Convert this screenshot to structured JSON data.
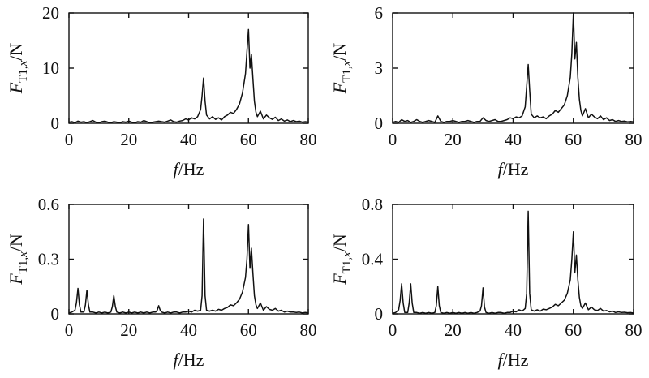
{
  "chart_data": [
    {
      "type": "line",
      "panel": "top-left",
      "xlabel": "f/Hz",
      "ylabel": "F_T1,x/N",
      "xlim": [
        0,
        80
      ],
      "ylim": [
        0,
        20
      ],
      "xticks": [
        0,
        20,
        40,
        60,
        80
      ],
      "yticks": [
        0,
        10,
        20
      ],
      "grid": false,
      "legend": "none",
      "series": [
        {
          "x": [
            0,
            1,
            2,
            3,
            4,
            5,
            6,
            7,
            8,
            9,
            10,
            11,
            12,
            13,
            14,
            15,
            16,
            17,
            18,
            19,
            20,
            21,
            22,
            23,
            24,
            25,
            26,
            27,
            28,
            29,
            30,
            31,
            32,
            33,
            34,
            35,
            36,
            37,
            38,
            39,
            40,
            41,
            42,
            43,
            44,
            44.5,
            45,
            45.5,
            46,
            47,
            48,
            49,
            50,
            51,
            52,
            53,
            54,
            55,
            56,
            57,
            58,
            59,
            59.5,
            60,
            60.5,
            61,
            61.5,
            62,
            62.5,
            63,
            64,
            65,
            66,
            67,
            68,
            69,
            70,
            71,
            72,
            73,
            74,
            75,
            76,
            77,
            78,
            79,
            80
          ],
          "y": [
            0.2,
            0.3,
            0.1,
            0.4,
            0.2,
            0.3,
            0.1,
            0.3,
            0.5,
            0.2,
            0.1,
            0.3,
            0.4,
            0.2,
            0.1,
            0.3,
            0.2,
            0.1,
            0.3,
            0.2,
            0.4,
            0.2,
            0.1,
            0.3,
            0.2,
            0.5,
            0.3,
            0.1,
            0.2,
            0.3,
            0.4,
            0.3,
            0.2,
            0.4,
            0.6,
            0.3,
            0.2,
            0.4,
            0.5,
            0.8,
            0.6,
            1.0,
            0.8,
            1.2,
            2.5,
            5.0,
            8.2,
            4.0,
            1.5,
            0.8,
            1.2,
            0.7,
            1.0,
            0.6,
            1.2,
            1.5,
            2.0,
            1.8,
            2.5,
            3.5,
            5.5,
            9.0,
            13.0,
            17.0,
            10.0,
            12.5,
            8.0,
            4.0,
            2.0,
            1.2,
            2.2,
            0.8,
            1.5,
            1.0,
            0.7,
            1.1,
            0.5,
            0.8,
            0.4,
            0.6,
            0.3,
            0.5,
            0.3,
            0.4,
            0.2,
            0.3,
            0.2
          ]
        }
      ]
    },
    {
      "type": "line",
      "panel": "top-right",
      "xlabel": "f/Hz",
      "ylabel": "F_T1,x/N",
      "xlim": [
        0,
        80
      ],
      "ylim": [
        0,
        6
      ],
      "xticks": [
        0,
        20,
        40,
        60,
        80
      ],
      "yticks": [
        0,
        3,
        6
      ],
      "grid": false,
      "legend": "none",
      "series": [
        {
          "x": [
            0,
            1,
            2,
            3,
            4,
            5,
            6,
            7,
            8,
            9,
            10,
            11,
            12,
            13,
            14,
            15,
            16,
            17,
            18,
            19,
            20,
            21,
            22,
            23,
            24,
            25,
            26,
            27,
            28,
            29,
            30,
            31,
            32,
            33,
            34,
            35,
            36,
            37,
            38,
            39,
            40,
            41,
            42,
            43,
            44,
            44.5,
            45,
            45.5,
            46,
            47,
            48,
            49,
            50,
            51,
            52,
            53,
            54,
            55,
            56,
            57,
            58,
            59,
            59.5,
            60,
            60.5,
            61,
            61.5,
            62,
            62.5,
            63,
            64,
            65,
            66,
            67,
            68,
            69,
            70,
            71,
            72,
            73,
            74,
            75,
            76,
            77,
            78,
            79,
            80
          ],
          "y": [
            0.05,
            0.1,
            0.05,
            0.2,
            0.1,
            0.15,
            0.05,
            0.1,
            0.2,
            0.1,
            0.05,
            0.1,
            0.15,
            0.1,
            0.05,
            0.4,
            0.1,
            0.05,
            0.1,
            0.1,
            0.15,
            0.1,
            0.05,
            0.1,
            0.1,
            0.15,
            0.1,
            0.05,
            0.1,
            0.1,
            0.3,
            0.15,
            0.1,
            0.15,
            0.2,
            0.1,
            0.1,
            0.15,
            0.2,
            0.3,
            0.25,
            0.35,
            0.3,
            0.4,
            0.9,
            2.0,
            3.2,
            1.8,
            0.5,
            0.3,
            0.4,
            0.3,
            0.35,
            0.25,
            0.4,
            0.5,
            0.7,
            0.6,
            0.8,
            1.0,
            1.5,
            2.5,
            3.8,
            6.0,
            3.5,
            4.4,
            2.5,
            1.3,
            0.7,
            0.4,
            0.8,
            0.3,
            0.5,
            0.35,
            0.25,
            0.4,
            0.2,
            0.3,
            0.15,
            0.2,
            0.1,
            0.15,
            0.1,
            0.12,
            0.08,
            0.1,
            0.08
          ]
        }
      ]
    },
    {
      "type": "line",
      "panel": "bottom-left",
      "xlabel": "f/Hz",
      "ylabel": "F_T1,x/N",
      "xlim": [
        0,
        80
      ],
      "ylim": [
        0,
        0.6
      ],
      "xticks": [
        0,
        20,
        40,
        60,
        80
      ],
      "yticks": [
        0,
        0.3,
        0.6
      ],
      "grid": false,
      "legend": "none",
      "series": [
        {
          "x": [
            0,
            1,
            2,
            2.5,
            3,
            3.5,
            4,
            5,
            5.5,
            6,
            6.5,
            7,
            8,
            9,
            10,
            11,
            12,
            13,
            14,
            14.5,
            15,
            15.5,
            16,
            17,
            18,
            19,
            20,
            21,
            22,
            23,
            24,
            25,
            26,
            27,
            28,
            29,
            29.5,
            30,
            30.5,
            31,
            32,
            33,
            34,
            35,
            36,
            37,
            38,
            39,
            40,
            41,
            42,
            43,
            44,
            44.5,
            45,
            45.5,
            46,
            47,
            48,
            49,
            50,
            51,
            52,
            53,
            54,
            55,
            56,
            57,
            58,
            59,
            59.5,
            60,
            60.5,
            61,
            61.5,
            62,
            62.5,
            63,
            64,
            65,
            66,
            67,
            68,
            69,
            70,
            71,
            72,
            73,
            74,
            75,
            76,
            77,
            78,
            79,
            80
          ],
          "y": [
            0.005,
            0.01,
            0.02,
            0.06,
            0.14,
            0.05,
            0.01,
            0.01,
            0.05,
            0.13,
            0.05,
            0.01,
            0.01,
            0.005,
            0.01,
            0.005,
            0.01,
            0.005,
            0.01,
            0.04,
            0.1,
            0.04,
            0.01,
            0.005,
            0.01,
            0.005,
            0.01,
            0.005,
            0.01,
            0.005,
            0.01,
            0.005,
            0.01,
            0.005,
            0.01,
            0.01,
            0.02,
            0.045,
            0.02,
            0.01,
            0.005,
            0.01,
            0.005,
            0.01,
            0.01,
            0.005,
            0.01,
            0.01,
            0.015,
            0.01,
            0.02,
            0.015,
            0.02,
            0.1,
            0.52,
            0.1,
            0.02,
            0.015,
            0.02,
            0.015,
            0.025,
            0.02,
            0.03,
            0.035,
            0.05,
            0.045,
            0.06,
            0.08,
            0.12,
            0.2,
            0.3,
            0.49,
            0.25,
            0.36,
            0.22,
            0.1,
            0.05,
            0.03,
            0.06,
            0.02,
            0.04,
            0.025,
            0.02,
            0.03,
            0.015,
            0.02,
            0.01,
            0.015,
            0.01,
            0.01,
            0.008,
            0.01,
            0.005,
            0.008,
            0.005
          ]
        }
      ]
    },
    {
      "type": "line",
      "panel": "bottom-right",
      "xlabel": "f/Hz",
      "ylabel": "F_T1,x/N",
      "xlim": [
        0,
        80
      ],
      "ylim": [
        0,
        0.8
      ],
      "xticks": [
        0,
        20,
        40,
        60,
        80
      ],
      "yticks": [
        0,
        0.4,
        0.8
      ],
      "grid": false,
      "legend": "none",
      "series": [
        {
          "x": [
            0,
            1,
            2,
            2.5,
            3,
            3.5,
            4,
            5,
            5.5,
            6,
            6.5,
            7,
            8,
            9,
            10,
            11,
            12,
            13,
            14,
            14.5,
            15,
            15.5,
            16,
            17,
            18,
            19,
            20,
            21,
            22,
            23,
            24,
            25,
            26,
            27,
            28,
            29,
            29.5,
            30,
            30.5,
            31,
            32,
            33,
            34,
            35,
            36,
            37,
            38,
            39,
            40,
            41,
            42,
            43,
            44,
            44.5,
            45,
            45.5,
            46,
            47,
            48,
            49,
            50,
            51,
            52,
            53,
            54,
            55,
            56,
            57,
            58,
            59,
            59.5,
            60,
            60.5,
            61,
            61.5,
            62,
            62.5,
            63,
            64,
            65,
            66,
            67,
            68,
            69,
            70,
            71,
            72,
            73,
            74,
            75,
            76,
            77,
            78,
            79,
            80
          ],
          "y": [
            0.005,
            0.01,
            0.03,
            0.1,
            0.22,
            0.08,
            0.01,
            0.01,
            0.08,
            0.22,
            0.08,
            0.01,
            0.01,
            0.005,
            0.01,
            0.005,
            0.01,
            0.005,
            0.01,
            0.06,
            0.2,
            0.06,
            0.01,
            0.005,
            0.01,
            0.005,
            0.01,
            0.005,
            0.01,
            0.005,
            0.01,
            0.005,
            0.01,
            0.005,
            0.01,
            0.02,
            0.06,
            0.19,
            0.05,
            0.01,
            0.005,
            0.01,
            0.005,
            0.01,
            0.01,
            0.005,
            0.01,
            0.01,
            0.02,
            0.015,
            0.03,
            0.02,
            0.04,
            0.15,
            0.75,
            0.15,
            0.03,
            0.02,
            0.03,
            0.02,
            0.035,
            0.03,
            0.04,
            0.05,
            0.07,
            0.06,
            0.08,
            0.1,
            0.15,
            0.25,
            0.4,
            0.6,
            0.3,
            0.43,
            0.25,
            0.12,
            0.06,
            0.04,
            0.08,
            0.03,
            0.05,
            0.03,
            0.025,
            0.04,
            0.02,
            0.025,
            0.015,
            0.02,
            0.01,
            0.015,
            0.01,
            0.012,
            0.008,
            0.01,
            0.006
          ]
        }
      ]
    }
  ]
}
